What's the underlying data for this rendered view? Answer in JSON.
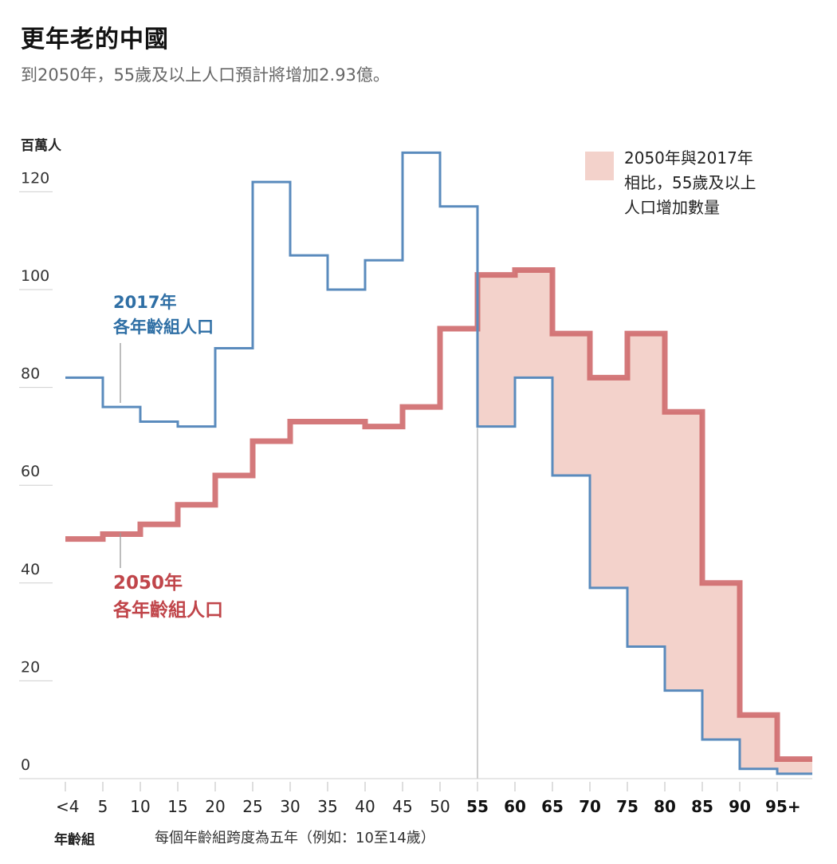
{
  "title": "更年老的中國",
  "subtitle": "到2050年，55歲及以上人口預計將增加2.93億。",
  "colors": {
    "blue": "#5a8bbd",
    "red": "#cf6a6d",
    "fill": "#f3d2cb",
    "grid": "#cfcfcf"
  },
  "chart_data": {
    "type": "area",
    "title": "更年老的中國",
    "subtitle": "到2050年，55歲及以上人口預計將增加2.93億。",
    "ylabel": "百萬人",
    "xlabel": "年齡組",
    "ylim": [
      0,
      125
    ],
    "yticks": [
      0,
      20,
      40,
      60,
      80,
      100,
      120
    ],
    "categories": [
      "<4",
      "5",
      "10",
      "15",
      "20",
      "25",
      "30",
      "35",
      "40",
      "45",
      "50",
      "55",
      "60",
      "65",
      "70",
      "75",
      "80",
      "85",
      "90",
      "95+"
    ],
    "bold_from_index": 11,
    "series": [
      {
        "name": "2017年 各年齡組人口",
        "label_line1": "2017年",
        "label_line2": "各年齡組人口",
        "values": [
          82,
          76,
          73,
          72,
          88,
          122,
          107,
          100,
          106,
          128,
          117,
          72,
          82,
          62,
          39,
          27,
          18,
          8,
          2,
          1
        ]
      },
      {
        "name": "2050年 各年齡組人口",
        "label_line1": "2050年",
        "label_line2": "各年齡組人口",
        "values": [
          49,
          50,
          52,
          56,
          62,
          69,
          73,
          73,
          72,
          76,
          92,
          103,
          104,
          91,
          82,
          91,
          75,
          40,
          13,
          4
        ]
      }
    ],
    "legend": {
      "line1": "2050年與2017年",
      "line2": "相比，55歲及以上",
      "line3": "人口增加數量"
    },
    "note": "每個年齡組跨度為五年（例如：10至14歲）"
  }
}
